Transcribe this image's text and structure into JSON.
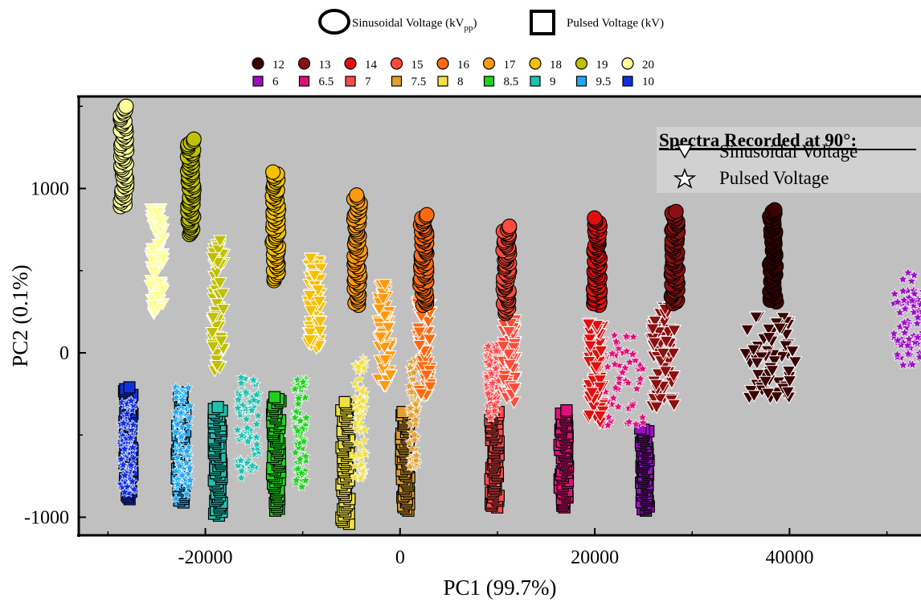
{
  "chart_data": {
    "type": "scatter",
    "xlabel": "PC1 (99.7%)",
    "ylabel": "PC2 (0.1%)",
    "xlim": [
      -33000,
      53500
    ],
    "ylim": [
      -1110,
      1560
    ],
    "x_ticks": [
      -20000,
      0,
      20000,
      40000
    ],
    "y_ticks": [
      -1000,
      0,
      1000
    ],
    "background": "#c0c0c0",
    "legend_shape_header": {
      "sinusoidal_label": "Sinusoidal Voltage (kV",
      "sinusoidal_sub": "pp",
      "sinusoidal_close": ")",
      "pulsed_label": "Pulsed Voltage (kV)"
    },
    "inset_legend": {
      "title": "Spectra Recorded at 90°:",
      "items": [
        {
          "marker": "triangle-down",
          "label": "Sinusoidal Voltage"
        },
        {
          "marker": "star",
          "label": "Pulsed Voltage"
        }
      ],
      "placement": "top-right"
    },
    "sinusoidal_series": [
      {
        "name": "12",
        "color": "#3b0000",
        "circle": {
          "x": 38300,
          "y0": 310,
          "y1": 870
        },
        "triangles": {
          "x": 38000,
          "y0": -280,
          "y1": 230,
          "w": 5200
        }
      },
      {
        "name": "13",
        "color": "#8b1010",
        "circle": {
          "x": 28200,
          "y0": 300,
          "y1": 860
        },
        "triangles": {
          "x": 27000,
          "y0": -330,
          "y1": 280,
          "w": 2400
        }
      },
      {
        "name": "14",
        "color": "#e01010",
        "circle": {
          "x": 20200,
          "y0": 290,
          "y1": 820
        },
        "triangles": {
          "x": 20100,
          "y0": -430,
          "y1": 190,
          "w": 1500
        }
      },
      {
        "name": "15",
        "color": "#ff4a3a",
        "circle": {
          "x": 10900,
          "y0": 240,
          "y1": 770
        },
        "triangles": {
          "x": 11200,
          "y0": -300,
          "y1": 230,
          "w": 1300
        }
      },
      {
        "name": "16",
        "color": "#ff6a10",
        "circle": {
          "x": 2400,
          "y0": 290,
          "y1": 840
        },
        "triangles": {
          "x": 2500,
          "y0": -270,
          "y1": 320,
          "w": 1400
        }
      },
      {
        "name": "17",
        "color": "#ff9a10",
        "circle": {
          "x": -4400,
          "y0": 290,
          "y1": 960
        },
        "triangles": {
          "x": -1600,
          "y0": -200,
          "y1": 420,
          "w": 1300
        }
      },
      {
        "name": "18",
        "color": "#f5c000",
        "circle": {
          "x": -12800,
          "y0": 440,
          "y1": 1100
        },
        "triangles": {
          "x": -8800,
          "y0": 30,
          "y1": 590,
          "w": 1300
        }
      },
      {
        "name": "19",
        "color": "#c0c000",
        "circle": {
          "x": -21500,
          "y0": 720,
          "y1": 1300
        },
        "triangles": {
          "x": -18700,
          "y0": -110,
          "y1": 690,
          "w": 1200
        }
      },
      {
        "name": "20",
        "color": "#ffff99",
        "circle": {
          "x": -28400,
          "y0": 890,
          "y1": 1500
        },
        "triangles": {
          "x": -25000,
          "y0": 240,
          "y1": 880,
          "w": 1300
        }
      }
    ],
    "pulsed_series": [
      {
        "name": "6",
        "color": "#9a10c0",
        "square": {
          "x": 25100,
          "y0": -960,
          "y1": -460
        },
        "stars": {
          "x": 52200,
          "y0": -80,
          "y1": 490,
          "w": 3000
        }
      },
      {
        "name": "6.5",
        "color": "#e0107a",
        "square": {
          "x": 16800,
          "y0": -940,
          "y1": -350
        },
        "stars": {
          "x": 22500,
          "y0": -450,
          "y1": 110,
          "w": 5000
        }
      },
      {
        "name": "7",
        "color": "#ff4a4a",
        "square": {
          "x": 9700,
          "y0": -940,
          "y1": -350
        },
        "stars": {
          "x": 9500,
          "y0": -400,
          "y1": 60,
          "w": 1200
        }
      },
      {
        "name": "7.5",
        "color": "#e0a030",
        "square": {
          "x": 500,
          "y0": -960,
          "y1": -360
        },
        "stars": {
          "x": 1400,
          "y0": -700,
          "y1": -20,
          "w": 900
        }
      },
      {
        "name": "8",
        "color": "#f0e040",
        "square": {
          "x": -5600,
          "y0": -1040,
          "y1": -300
        },
        "stars": {
          "x": -4100,
          "y0": -770,
          "y1": -30,
          "w": 1200
        }
      },
      {
        "name": "8.5",
        "color": "#20d020",
        "square": {
          "x": -12700,
          "y0": -960,
          "y1": -270
        },
        "stars": {
          "x": -10200,
          "y0": -830,
          "y1": -140,
          "w": 1200
        }
      },
      {
        "name": "9",
        "color": "#20c0b0",
        "square": {
          "x": -18700,
          "y0": -990,
          "y1": -330
        },
        "stars": {
          "x": -15600,
          "y0": -770,
          "y1": -150,
          "w": 2200
        }
      },
      {
        "name": "9.5",
        "color": "#20a8f0",
        "square": {
          "x": -22500,
          "y0": -910,
          "y1": -240
        },
        "stars": {
          "x": -22300,
          "y0": -890,
          "y1": -200,
          "w": 1500
        }
      },
      {
        "name": "10",
        "color": "#1030e0",
        "square": {
          "x": -27900,
          "y0": -890,
          "y1": -210
        },
        "stars": {
          "x": -28000,
          "y0": -860,
          "y1": -280,
          "w": 1400
        }
      }
    ]
  }
}
